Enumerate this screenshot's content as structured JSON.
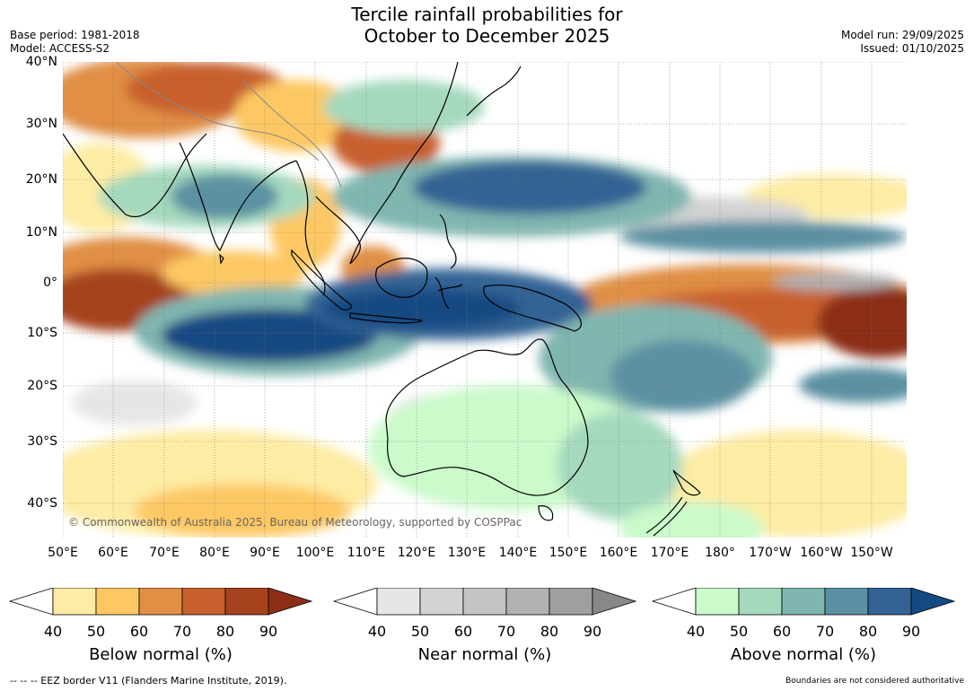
{
  "title_line1": "Tercile rainfall probabilities for",
  "title_line2": "October to December 2025",
  "base_period": "Base period: 1981-2018",
  "model": "Model: ACCESS-S2",
  "model_run": "Model run: 29/09/2025",
  "issued": "Issued: 01/10/2025",
  "copyright": "© Commonwealth of Australia 2025, Bureau of Meteorology, supported by COSPPac",
  "lat_labels": [
    "40°N",
    "30°N",
    "20°N",
    "10°N",
    "0°",
    "10°S",
    "20°S",
    "30°S",
    "40°S"
  ],
  "lon_labels": [
    "50°E",
    "60°E",
    "70°E",
    "80°E",
    "90°E",
    "100°E",
    "110°E",
    "120°E",
    "130°E",
    "140°E",
    "150°E",
    "160°E",
    "170°E",
    "180°",
    "170°W",
    "160°W",
    "150°W"
  ],
  "colorbars": [
    {
      "title": "Below normal (%)",
      "ticks": [
        "40",
        "50",
        "60",
        "70",
        "80",
        "90"
      ],
      "colors": [
        "#ffffff",
        "#fdeca4",
        "#fdc863",
        "#e08f44",
        "#c8602e",
        "#a6431f",
        "#8c2e15"
      ]
    },
    {
      "title": "Near normal (%)",
      "ticks": [
        "40",
        "50",
        "60",
        "70",
        "80",
        "90"
      ],
      "colors": [
        "#ffffff",
        "#e6e6e6",
        "#d3d3d3",
        "#c4c4c4",
        "#b2b2b2",
        "#9f9f9f",
        "#888888"
      ]
    },
    {
      "title": "Above normal (%)",
      "ticks": [
        "40",
        "50",
        "60",
        "70",
        "80",
        "90"
      ],
      "colors": [
        "#ffffff",
        "#cbfacb",
        "#a4d9be",
        "#80b6b0",
        "#5b91a2",
        "#336394",
        "#134a82"
      ]
    }
  ],
  "footer_left": "--  --  -- EEZ border V11 (Flanders Marine Institute, 2019).",
  "footer_right": "Boundaries are not considered authoritative"
}
